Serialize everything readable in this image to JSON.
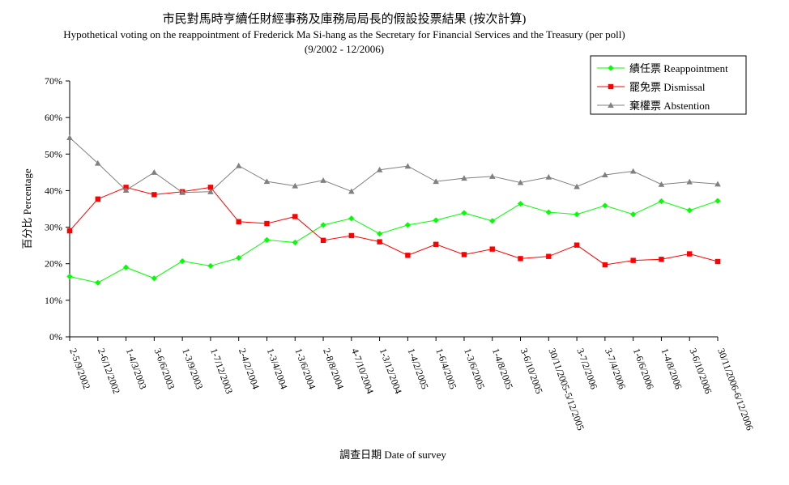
{
  "chart_data": {
    "type": "line",
    "title_zh": "市民對馬時亨續任財經事務及庫務局局長的假設投票結果 (按次計算)",
    "title_en": "Hypothetical voting on the reappointment of Frederick Ma Si-hang as the Secretary for Financial Services and the Treasury (per poll)",
    "title_range": "(9/2002 - 12/2006)",
    "ylabel": "百分比 Percentage",
    "xlabel": "調查日期 Date of survey",
    "ylim": [
      0,
      70
    ],
    "yticks": [
      "0%",
      "10%",
      "20%",
      "30%",
      "40%",
      "50%",
      "60%",
      "70%"
    ],
    "legend_position": "top-right",
    "categories": [
      "2-5/9/2002",
      "2-6/12/2002",
      "1-4/3/2003",
      "3-6/6/2003",
      "1-3/9/2003",
      "1-7/12/2003",
      "2-4/2/2004",
      "1-3/4/2004",
      "1-3/6/2004",
      "2-8/8/2004",
      "4-7/10/2004",
      "1-3/12/2004",
      "1-4/2/2005",
      "1-6/4/2005",
      "1-3/6/2005",
      "1-4/8/2005",
      "3-6/10/2005",
      "30/11/2005-5/12/2005",
      "3-7/2/2006",
      "3-7/4/2006",
      "1-6/6/2006",
      "1-4/8/2006",
      "3-6/10/2006",
      "30/11/2006-6/12/2006"
    ],
    "series": [
      {
        "name": "績任票 Reappointment",
        "color": "#00ff00",
        "marker": "diamond",
        "values": [
          16.5,
          14.8,
          19,
          16,
          20.7,
          19.4,
          21.6,
          26.5,
          25.8,
          30.6,
          32.4,
          28.2,
          30.6,
          31.9,
          33.9,
          31.7,
          36.4,
          34.1,
          33.5,
          35.9,
          33.5,
          37.1,
          34.6,
          37.2
        ]
      },
      {
        "name": "罷免票 Dismissal",
        "color": "#ff0000",
        "marker": "square",
        "values": [
          29,
          37.7,
          40.9,
          38.9,
          39.7,
          40.9,
          31.5,
          31,
          32.9,
          26.4,
          27.7,
          26,
          22.3,
          25.3,
          22.5,
          24,
          21.4,
          22,
          25.1,
          19.7,
          20.9,
          21.2,
          22.7,
          20.6
        ]
      },
      {
        "name": "棄權票 Abstention",
        "color": "#808080",
        "marker": "triangle",
        "values": [
          54.5,
          47.5,
          40.1,
          45,
          39.5,
          39.7,
          46.8,
          42.5,
          41.3,
          42.8,
          39.8,
          45.7,
          46.7,
          42.5,
          43.4,
          43.9,
          42.2,
          43.7,
          41.1,
          44.3,
          45.3,
          41.7,
          42.4,
          41.8
        ]
      }
    ]
  }
}
